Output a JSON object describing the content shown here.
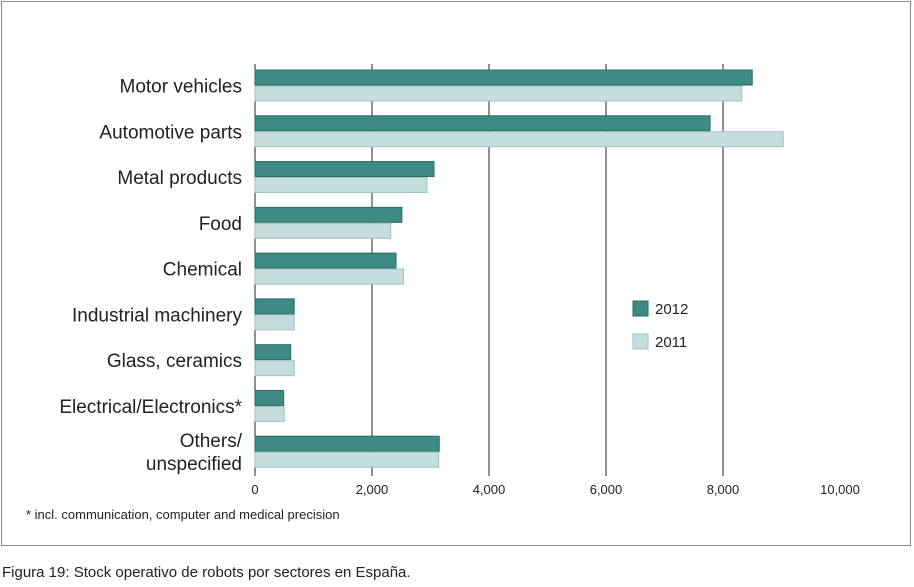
{
  "chart_data": {
    "type": "bar",
    "orientation": "horizontal",
    "categories": [
      [
        "Motor vehicles"
      ],
      [
        "Automotive parts"
      ],
      [
        "Metal products"
      ],
      [
        "Food"
      ],
      [
        "Chemical"
      ],
      [
        "Industrial machinery"
      ],
      [
        "Glass, ceramics"
      ],
      [
        "Electrical/Electronics*"
      ],
      [
        "Others/",
        "unspecified"
      ]
    ],
    "series": [
      {
        "name": "2012",
        "color": "#3e8a84",
        "values": [
          8500,
          7780,
          3060,
          2510,
          2410,
          670,
          610,
          490,
          3150
        ]
      },
      {
        "name": "2011",
        "color": "#c5dedd",
        "values": [
          8320,
          9030,
          2940,
          2320,
          2540,
          670,
          670,
          500,
          3140
        ]
      }
    ],
    "xlim": [
      0,
      10000
    ],
    "xticks": [
      0,
      2000,
      4000,
      6000,
      8000,
      10000
    ],
    "xtick_labels": [
      "0",
      "2,000",
      "4,000",
      "6,000",
      "8,000",
      "10,000"
    ],
    "grid": true,
    "legend_position": "right"
  },
  "footnote": "* incl. communication, computer and medical precision",
  "caption": "Figura 19: Stock operativo de robots por sectores en España."
}
